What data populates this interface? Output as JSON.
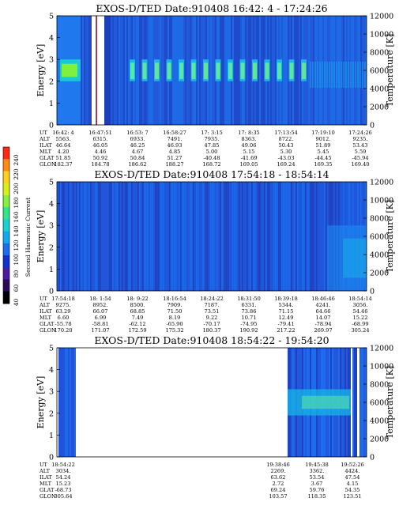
{
  "colors": {
    "background": "#2a5ad8",
    "white_gap": "#ffffff"
  },
  "colorbar": {
    "label": "Second Harmonic Current",
    "ticks": [
      "40",
      "60",
      "80",
      "100",
      "120",
      "140",
      "160",
      "180",
      "200",
      "220",
      "240"
    ],
    "colors": [
      "#000000",
      "#2b0a5a",
      "#4a1aa0",
      "#1030d0",
      "#1d6cf0",
      "#14a8f0",
      "#18d2d2",
      "#30e68a",
      "#86f040",
      "#d8f018",
      "#ffd020",
      "#ff8a10",
      "#ff2a10"
    ]
  },
  "rowlabels": [
    "UT",
    "ALT",
    "ILAT",
    "MLT",
    "GLAT",
    "GLON"
  ],
  "chart_data": [
    {
      "type": "heatmap",
      "title": "EXOS-D/TED   Date:910408  16:42: 4 - 17:24:26",
      "ylabel": "Energy [eV]",
      "y2label": "Temperature [K]",
      "ylim": [
        0,
        5
      ],
      "y2lim": [
        0,
        12000
      ],
      "yticks": [
        "0",
        "1",
        "2",
        "3",
        "4",
        "5"
      ],
      "y2ticks": [
        "0",
        "2000",
        "4000",
        "6000",
        "8000",
        "10000",
        "12000"
      ],
      "table": [
        {
          "UT": "16:42: 4",
          "ALT": "5563.",
          "ILAT": "46.64",
          "MLT": "4.20",
          "GLAT": "51.85",
          "GLON": "182.37"
        },
        {
          "UT": "16:47:51",
          "ALT": "6315.",
          "ILAT": "46.05",
          "MLT": "4.46",
          "GLAT": "50.92",
          "GLON": "184.78"
        },
        {
          "UT": "16:53: 7",
          "ALT": "6933.",
          "ILAT": "46.25",
          "MLT": "4.67",
          "GLAT": "50.84",
          "GLON": "186.62"
        },
        {
          "UT": "16:58:27",
          "ALT": "7491.",
          "ILAT": "46.93",
          "MLT": "4.85",
          "GLAT": "51.27",
          "GLON": "188.27"
        },
        {
          "UT": "17: 3:15",
          "ALT": "7935.",
          "ILAT": "47.85",
          "MLT": "5.00",
          "GLAT": "-40.48",
          "GLON": "168.72"
        },
        {
          "UT": "17: 8:35",
          "ALT": "8363.",
          "ILAT": "49.06",
          "MLT": "5.15",
          "GLAT": "-41.69",
          "GLON": "169.05"
        },
        {
          "UT": "17:13:54",
          "ALT": "8722.",
          "ILAT": "50.43",
          "MLT": "5.30",
          "GLAT": "-43.03",
          "GLON": "169.24"
        },
        {
          "UT": "17:19:10",
          "ALT": "9012.",
          "ILAT": "51.89",
          "MLT": "5.45",
          "GLAT": "-44.45",
          "GLON": "169.35"
        },
        {
          "UT": "17:24:26",
          "ALT": "9235.",
          "ILAT": "53.43",
          "MLT": "5.59",
          "GLAT": "-45.94",
          "GLON": "169.40"
        }
      ]
    },
    {
      "type": "heatmap",
      "title": "EXOS-D/TED   Date:910408  17:54:18 - 18:54:14",
      "ylabel": "Energy [eV]",
      "y2label": "Temperature [K]",
      "ylim": [
        0,
        5
      ],
      "y2lim": [
        0,
        12000
      ],
      "yticks": [
        "0",
        "1",
        "2",
        "3",
        "4",
        "5"
      ],
      "y2ticks": [
        "0",
        "2000",
        "4000",
        "6000",
        "8000",
        "10000",
        "12000"
      ],
      "table": [
        {
          "UT": "17:54:18",
          "ALT": "9275.",
          "ILAT": "63.29",
          "MLT": "6.60",
          "GLAT": "-55.78",
          "GLON": "170.20"
        },
        {
          "UT": "18: 1:54",
          "ALT": "8952.",
          "ILAT": "66.07",
          "MLT": "6.99",
          "GLAT": "-58.81",
          "GLON": "171.07"
        },
        {
          "UT": "18: 9:22",
          "ALT": "8500.",
          "ILAT": "68.85",
          "MLT": "7.49",
          "GLAT": "-62.12",
          "GLON": "172.59"
        },
        {
          "UT": "18:16:54",
          "ALT": "7909.",
          "ILAT": "71.50",
          "MLT": "8.19",
          "GLAT": "-65.90",
          "GLON": "175.32"
        },
        {
          "UT": "18:24:22",
          "ALT": "7187.",
          "ILAT": "73.51",
          "MLT": "9.22",
          "GLAT": "-70.17",
          "GLON": "180.37"
        },
        {
          "UT": "18:31:50",
          "ALT": "6331.",
          "ILAT": "73.86",
          "MLT": "10.71",
          "GLAT": "-74.95",
          "GLON": "190.92"
        },
        {
          "UT": "18:39:18",
          "ALT": "5344.",
          "ILAT": "71.15",
          "MLT": "12.49",
          "GLAT": "-79.41",
          "GLON": "217.22"
        },
        {
          "UT": "18:46:46",
          "ALT": "4241.",
          "ILAT": "64.66",
          "MLT": "14.07",
          "GLAT": "-78.94",
          "GLON": "269.97"
        },
        {
          "UT": "18:54:14",
          "ALT": "3056.",
          "ILAT": "54.46",
          "MLT": "15.22",
          "GLAT": "-68.99",
          "GLON": "305.24"
        }
      ]
    },
    {
      "type": "heatmap",
      "title": "EXOS-D/TED   Date:910408  18:54:22 - 19:54:20",
      "ylabel": "Energy [eV]",
      "y2label": "Temperature [K]",
      "ylim": [
        0,
        5
      ],
      "y2lim": [
        0,
        12000
      ],
      "yticks": [
        "0",
        "1",
        "2",
        "3",
        "4",
        "5"
      ],
      "y2ticks": [
        "0",
        "2000",
        "4000",
        "6000",
        "8000",
        "10000",
        "12000"
      ],
      "table": [
        {
          "UT": "18:54:22",
          "ALT": "3034.",
          "ILAT": "54.24",
          "MLT": "15.23",
          "GLAT": "-68.73",
          "GLON": "305.64"
        },
        {
          "UT": "19:38:46",
          "ALT": "2269.",
          "ILAT": "63.62",
          "MLT": "2.72",
          "GLAT": "69.24",
          "GLON": "103.57"
        },
        {
          "UT": "19:45:38",
          "ALT": "3362.",
          "ILAT": "53.54",
          "MLT": "3.67",
          "GLAT": "59.76",
          "GLON": "118.35"
        },
        {
          "UT": "19:52:26",
          "ALT": "4424.",
          "ILAT": "47.54",
          "MLT": "4.15",
          "GLAT": "54.35",
          "GLON": "123.51"
        }
      ]
    }
  ]
}
